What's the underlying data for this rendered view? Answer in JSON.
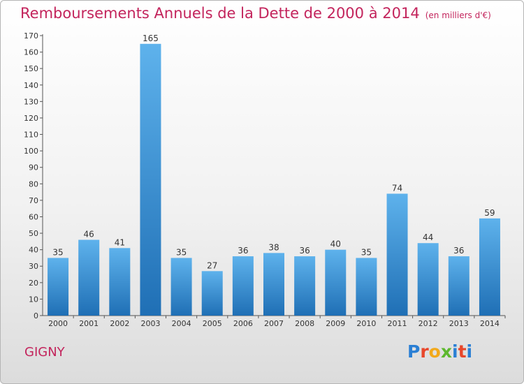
{
  "title": "Remboursements Annuels de la Dette de 2000 à 2014",
  "unit": "(en milliers d'€)",
  "commune": "GIGNY",
  "logo": {
    "letters": [
      "P",
      "r",
      "o",
      "x",
      "i",
      "t",
      "i"
    ],
    "colors": [
      "#2a7fd4",
      "#e8472b",
      "#f2a91a",
      "#5db82e",
      "#2a7fd4",
      "#e8472b",
      "#2a7fd4"
    ]
  },
  "colors": {
    "title": "#c3245c",
    "bar_top": "#5eb2ec",
    "bar_bottom": "#1f6fb5"
  },
  "chart_data": {
    "type": "bar",
    "title": "Remboursements Annuels de la Dette de 2000 à 2014",
    "categories": [
      "2000",
      "2001",
      "2002",
      "2003",
      "2004",
      "2005",
      "2006",
      "2007",
      "2008",
      "2009",
      "2010",
      "2011",
      "2012",
      "2013",
      "2014"
    ],
    "values": [
      35,
      46,
      41,
      165,
      35,
      27,
      36,
      38,
      36,
      40,
      35,
      74,
      44,
      36,
      59
    ],
    "ylim": [
      0,
      170
    ],
    "ytick_step": 10,
    "grid": false,
    "data_labels": true
  }
}
